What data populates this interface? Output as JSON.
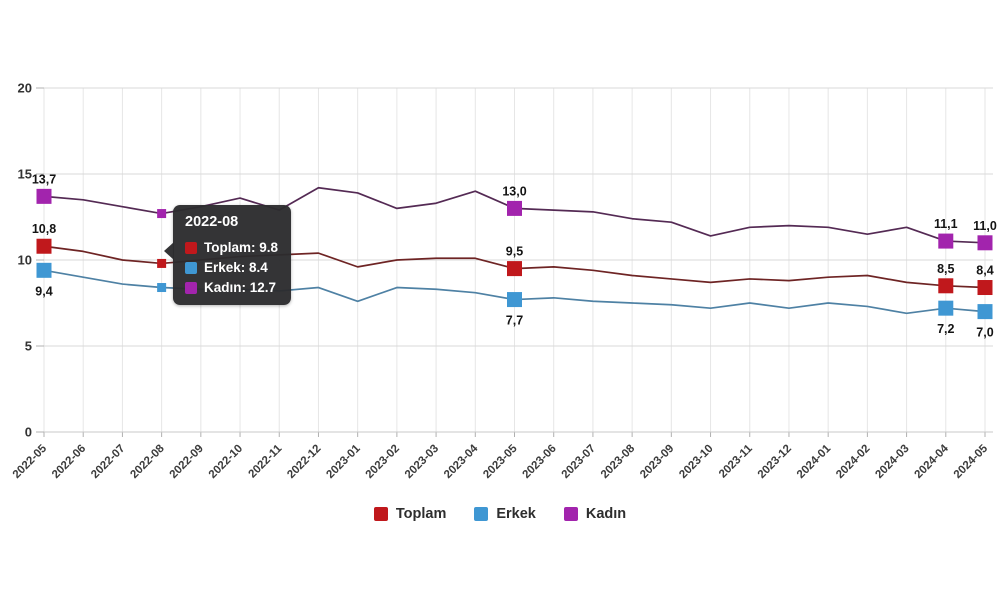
{
  "chart_data": {
    "type": "line",
    "title": "",
    "xlabel": "",
    "ylabel": "",
    "ylim": [
      0,
      20
    ],
    "yticks": [
      0,
      5,
      10,
      15,
      20
    ],
    "grid": true,
    "legend_position": "bottom",
    "decimal_separator": ",",
    "x": [
      "2022-05",
      "2022-06",
      "2022-07",
      "2022-08",
      "2022-09",
      "2022-10",
      "2022-11",
      "2022-12",
      "2023-01",
      "2023-02",
      "2023-03",
      "2023-04",
      "2023-05",
      "2023-06",
      "2023-07",
      "2023-08",
      "2023-09",
      "2023-10",
      "2023-11",
      "2023-12",
      "2024-01",
      "2024-02",
      "2024-03",
      "2024-04",
      "2024-05"
    ],
    "labeled_indices": [
      0,
      12,
      23,
      24
    ],
    "hover_index": 3,
    "series": [
      {
        "id": "kadin",
        "name": "Kadın",
        "color": "#a224ad",
        "line_color": "#542a54",
        "label_side": "above",
        "values": [
          13.7,
          13.5,
          13.1,
          12.7,
          13.1,
          13.6,
          12.9,
          14.2,
          13.9,
          13.0,
          13.3,
          14.0,
          13.0,
          12.9,
          12.8,
          12.4,
          12.2,
          11.4,
          11.9,
          12.0,
          11.9,
          11.5,
          11.9,
          11.1,
          11.0
        ]
      },
      {
        "id": "toplam",
        "name": "Toplam",
        "color": "#c0181c",
        "line_color": "#6e2424",
        "label_side": "above",
        "values": [
          10.8,
          10.5,
          10.0,
          9.8,
          10.0,
          10.2,
          10.3,
          10.4,
          9.6,
          10.0,
          10.1,
          10.1,
          9.5,
          9.6,
          9.4,
          9.1,
          8.9,
          8.7,
          8.9,
          8.8,
          9.0,
          9.1,
          8.7,
          8.5,
          8.4
        ]
      },
      {
        "id": "erkek",
        "name": "Erkek",
        "color": "#3f97d3",
        "line_color": "#4e81a4",
        "label_side": "below",
        "values": [
          9.4,
          9.0,
          8.6,
          8.4,
          8.3,
          8.3,
          8.2,
          8.4,
          7.6,
          8.4,
          8.3,
          8.1,
          7.7,
          7.8,
          7.6,
          7.5,
          7.4,
          7.2,
          7.5,
          7.2,
          7.5,
          7.3,
          6.9,
          7.2,
          7.0
        ]
      }
    ]
  },
  "tooltip": {
    "title": "2022-08",
    "category_index": 3,
    "rows": [
      {
        "series": "Toplam",
        "text": "Toplam: 9.8",
        "color": "#c0181c"
      },
      {
        "series": "Erkek",
        "text": "Erkek: 8.4",
        "color": "#3f97d3"
      },
      {
        "series": "Kadın",
        "text": "Kadın: 12.7",
        "color": "#a224ad"
      }
    ]
  },
  "legend": {
    "items": [
      {
        "label": "Toplam",
        "color": "#c0181c"
      },
      {
        "label": "Erkek",
        "color": "#3f97d3"
      },
      {
        "label": "Kadın",
        "color": "#a224ad"
      }
    ]
  }
}
